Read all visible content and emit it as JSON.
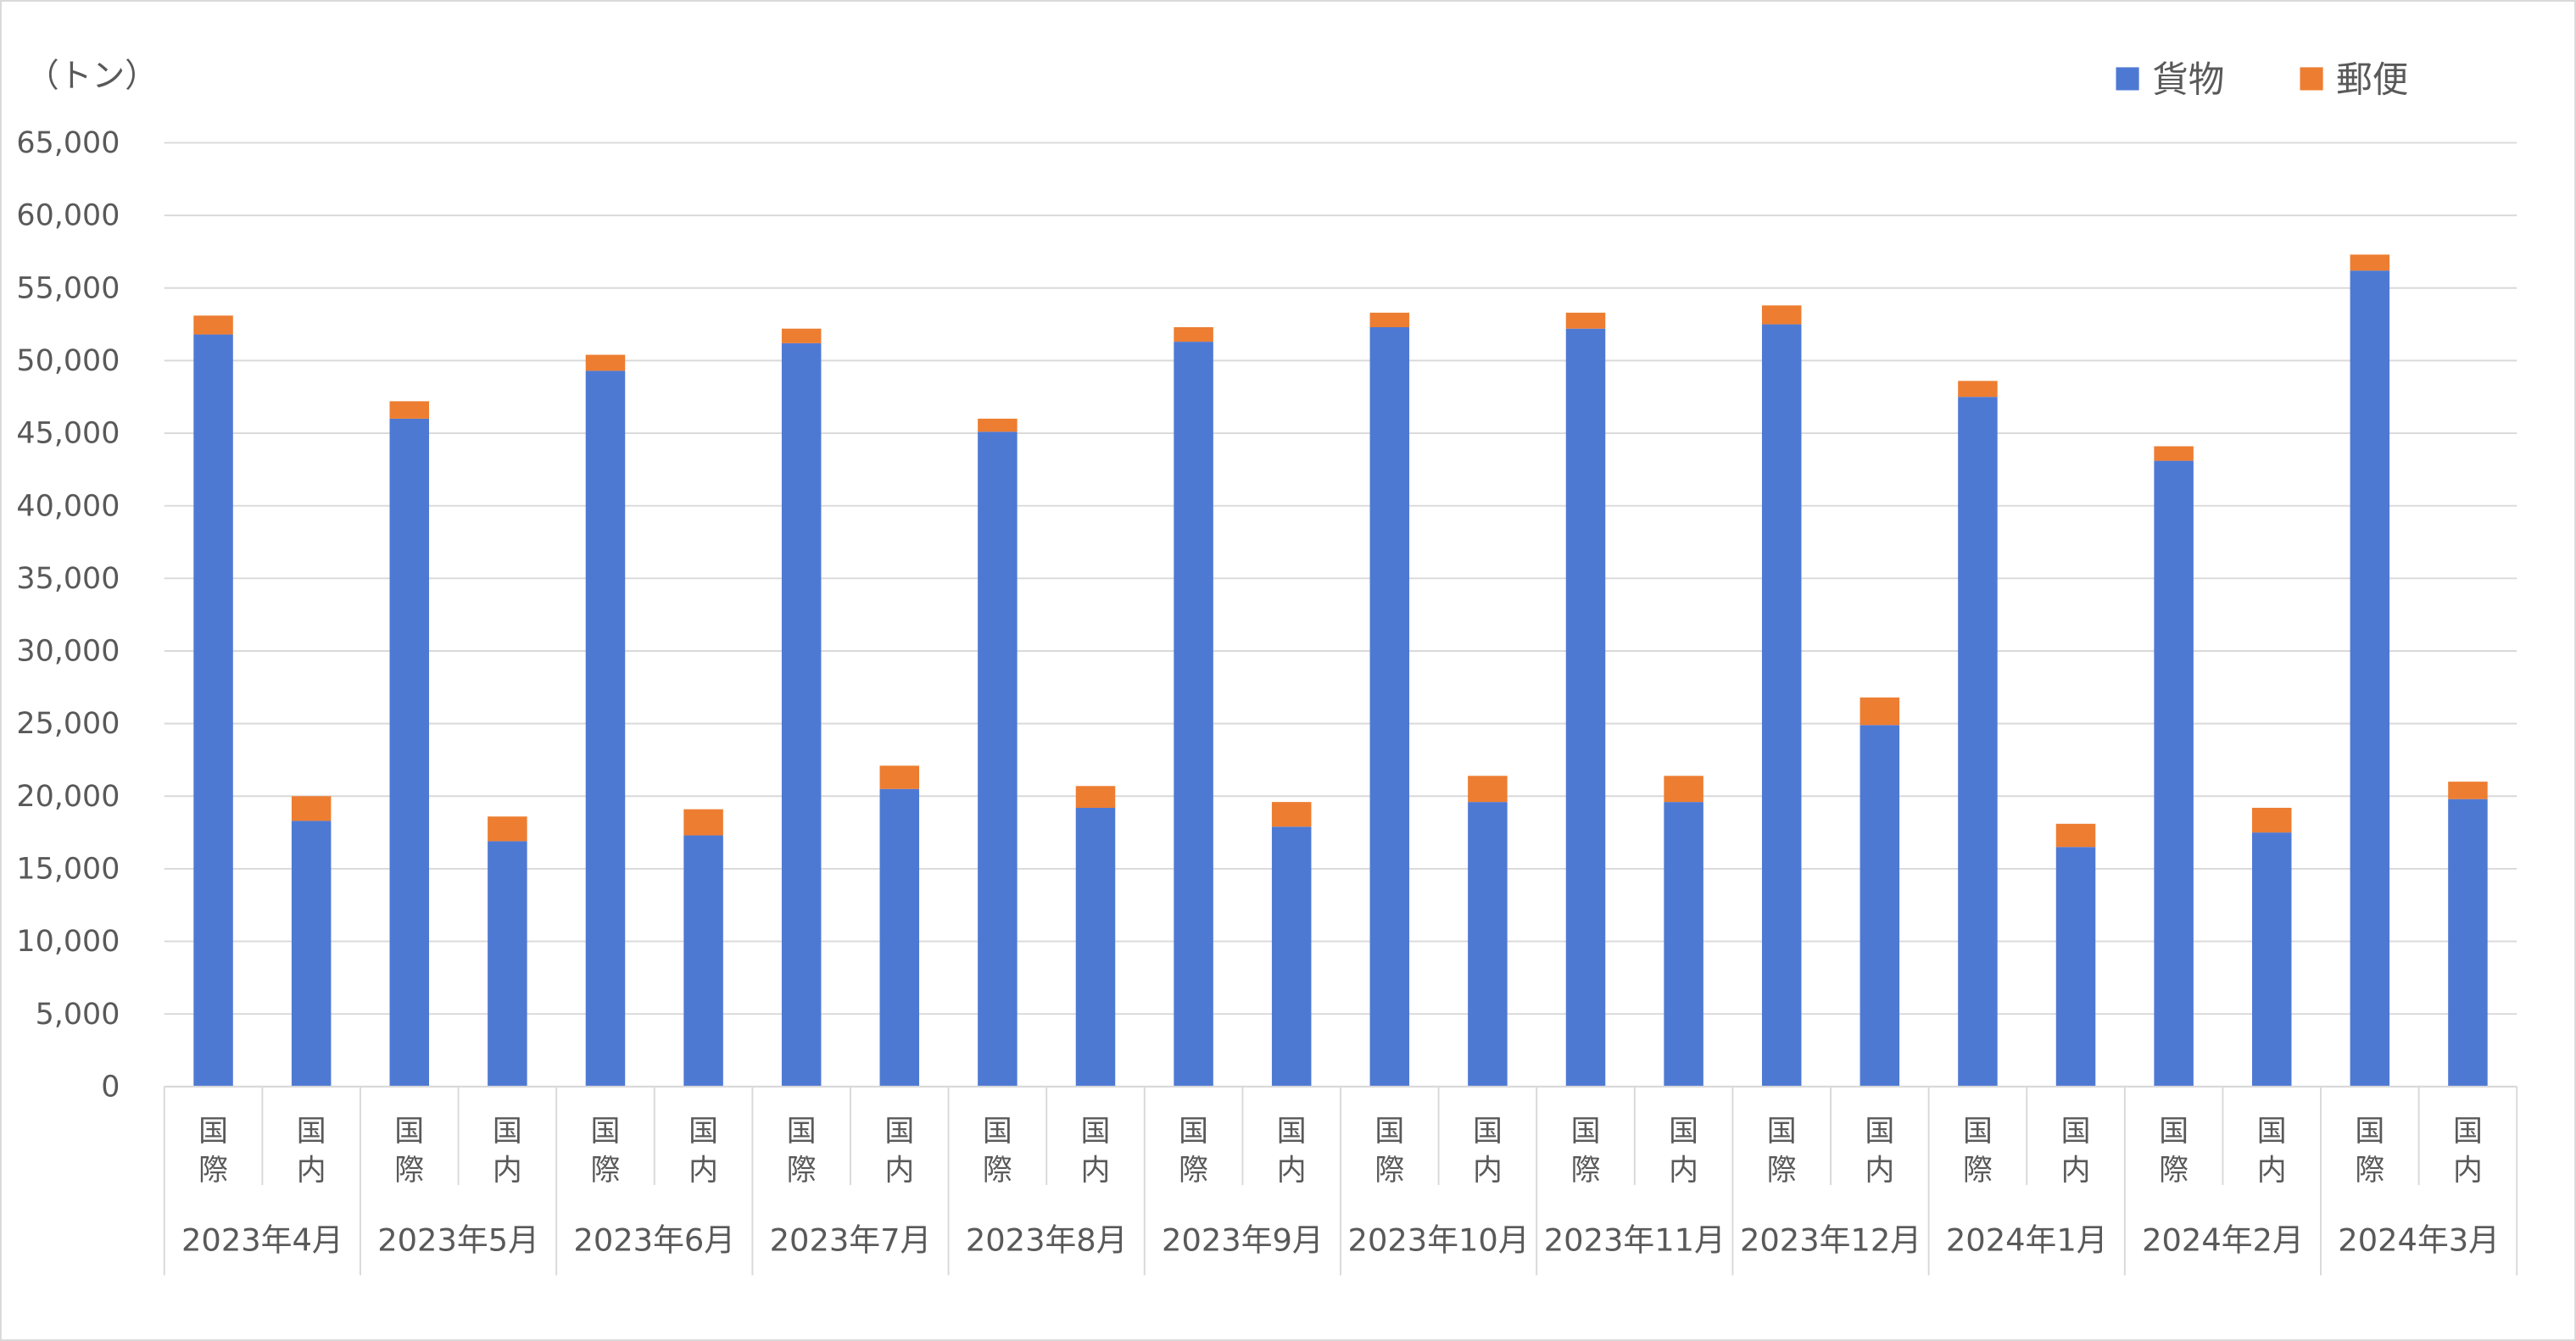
{
  "chart_data": {
    "type": "bar",
    "stacked": true,
    "title": "",
    "xlabel": "",
    "ylabel": "（トン）",
    "ylim": [
      0,
      65000
    ],
    "ytick_labels": [
      "0",
      "5,000",
      "10,000",
      "15,000",
      "20,000",
      "25,000",
      "30,000",
      "35,000",
      "40,000",
      "45,000",
      "50,000",
      "55,000",
      "60,000",
      "65,000"
    ],
    "grid": true,
    "legend_position": "top-right",
    "groups": [
      "2023年4月",
      "2023年5月",
      "2023年6月",
      "2023年7月",
      "2023年8月",
      "2023年9月",
      "2023年10月",
      "2023年11月",
      "2023年12月",
      "2024年1月",
      "2024年2月",
      "2024年3月"
    ],
    "subcategories": [
      "国際",
      "国内"
    ],
    "series": [
      {
        "name": "貨物",
        "color": "#4e79d3",
        "values": [
          51800,
          18300,
          46000,
          16900,
          49300,
          17300,
          51200,
          20500,
          45100,
          19200,
          51300,
          17900,
          52300,
          19600,
          52200,
          19600,
          52500,
          24900,
          47500,
          16500,
          43100,
          17500,
          56200,
          19800
        ]
      },
      {
        "name": "郵便",
        "color": "#ed7d31",
        "values": [
          1300,
          1700,
          1200,
          1700,
          1100,
          1800,
          1000,
          1600,
          900,
          1500,
          1000,
          1700,
          1000,
          1800,
          1100,
          1800,
          1300,
          1900,
          1100,
          1600,
          1000,
          1700,
          1100,
          1200
        ]
      }
    ]
  }
}
